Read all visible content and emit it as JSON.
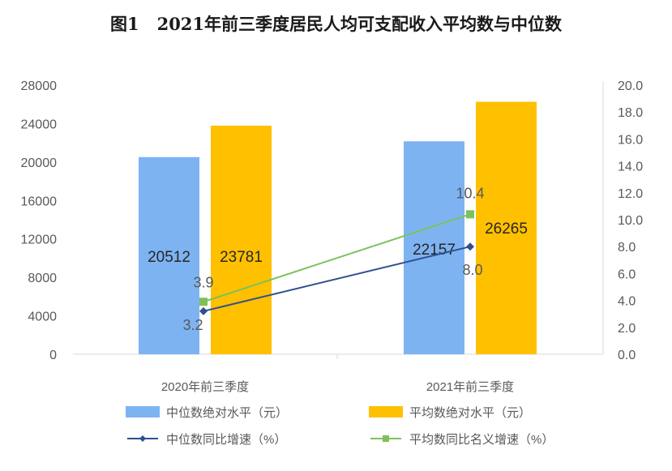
{
  "title": {
    "figure_no": "图1",
    "text": "2021年前三季度居民人均可支配收入平均数与中位数"
  },
  "chart_data": {
    "type": "bar",
    "categories": [
      "2020年前三季度",
      "2021年前三季度"
    ],
    "series": [
      {
        "name": "中位数绝对水平（元）",
        "kind": "bar",
        "axis": "left",
        "color": "#7EB3F2",
        "values": [
          20512,
          22157
        ]
      },
      {
        "name": "平均数绝对水平（元）",
        "kind": "bar",
        "axis": "left",
        "color": "#FFC000",
        "values": [
          23781,
          26265
        ]
      },
      {
        "name": "中位数同比增速（%）",
        "kind": "line",
        "axis": "right",
        "color": "#2F4F8F",
        "marker": "diamond",
        "values": [
          3.2,
          8.0
        ]
      },
      {
        "name": "平均数同比名义增速（%）",
        "kind": "line",
        "axis": "right",
        "color": "#7DC15A",
        "marker": "square",
        "values": [
          3.9,
          10.4
        ]
      }
    ],
    "y_left": {
      "min": 0,
      "max": 28000,
      "ticks": [
        "0",
        "4000",
        "8000",
        "12000",
        "16000",
        "20000",
        "24000",
        "28000"
      ]
    },
    "y_right": {
      "min": 0,
      "max": 20,
      "ticks": [
        "0.0",
        "2.0",
        "4.0",
        "6.0",
        "8.0",
        "10.0",
        "12.0",
        "14.0",
        "16.0",
        "18.0",
        "20.0"
      ]
    },
    "grid": false,
    "legend_position": "bottom"
  }
}
